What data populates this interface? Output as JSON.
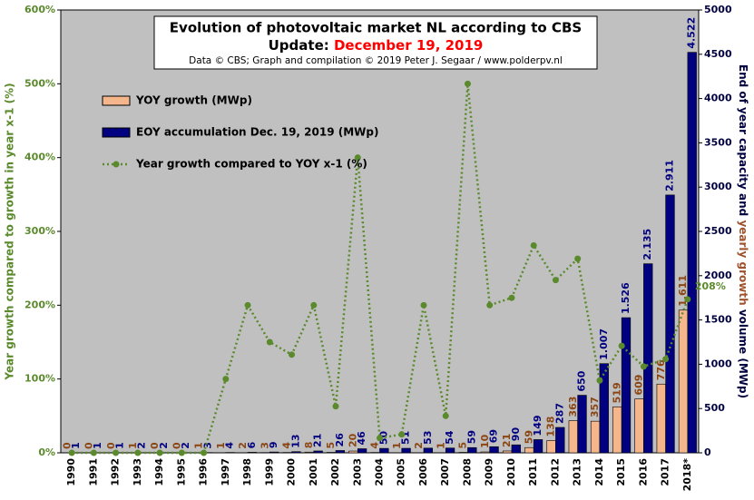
{
  "chart_data": {
    "type": "bar_line",
    "title": "Evolution  of photovoltaic  market NL according to CBS",
    "subtitle_prefix": "Update: ",
    "subtitle_date": "December 19, 2019",
    "credit": "Data © CBS; Graph and compilation © 2019 Peter J. Segaar / www.polderpv.nl",
    "ylabel": "Year growth compared to growth in year x-1 (%)",
    "y2label_parts": [
      "End of year capacity and ",
      "yearly growth",
      " volume (MWp)"
    ],
    "categories": [
      "1990",
      "1991",
      "1992",
      "1993",
      "1994",
      "1995",
      "1996",
      "1997",
      "1998",
      "1999",
      "2000",
      "2001",
      "2002",
      "2003",
      "2004",
      "2005",
      "2006",
      "2007",
      "2008",
      "2009",
      "2010",
      "2011",
      "2012",
      "2013",
      "2014",
      "2015",
      "2016",
      "2017",
      "2018*"
    ],
    "series": [
      {
        "name": "YOY growth (MWp)",
        "color": "#f6b68c",
        "label_color": "#8b4513",
        "axis": "y2",
        "kind": "bar",
        "values": [
          0,
          0,
          0,
          1,
          0,
          0,
          1,
          1,
          2,
          3,
          4,
          8,
          5,
          20,
          4,
          1,
          2,
          1,
          5,
          10,
          21,
          59,
          138,
          363,
          357,
          519,
          609,
          776,
          1611
        ],
        "value_labels": [
          "0",
          "0",
          "0",
          "1",
          "0",
          "0",
          "1",
          "1",
          "2",
          "3",
          "4",
          "8",
          "5",
          "20",
          "4",
          "1",
          "2",
          "1",
          "5",
          "10",
          "21",
          "59",
          "138",
          "363",
          "357",
          "519",
          "609",
          "776",
          "1.611"
        ]
      },
      {
        "name": "EOY accumulation Dec. 19, 2019 (MWp)",
        "color": "#000080",
        "label_color": "#000080",
        "axis": "y2",
        "kind": "bar",
        "values": [
          1,
          1,
          1,
          2,
          2,
          2,
          3,
          4,
          6,
          9,
          13,
          21,
          26,
          46,
          50,
          51,
          53,
          54,
          59,
          69,
          90,
          149,
          287,
          650,
          1007,
          1526,
          2135,
          2911,
          4522
        ],
        "value_labels": [
          "1",
          "1",
          "1",
          "2",
          "2",
          "2",
          "3",
          "4",
          "6",
          "9",
          "13",
          "21",
          "26",
          "46",
          "50",
          "51",
          "53",
          "54",
          "59",
          "69",
          "90",
          "149",
          "287",
          "650",
          "1.007",
          "1.526",
          "2.135",
          "2.911",
          "4.522"
        ]
      },
      {
        "name": "Year growth compared to YOY x-1 (%)",
        "color": "#5b8a2d",
        "axis": "y",
        "kind": "line",
        "values": [
          0,
          0,
          0,
          0,
          0,
          0,
          0,
          100,
          200,
          150,
          133,
          200,
          63,
          400,
          20,
          25,
          200,
          50,
          500,
          200,
          210,
          281,
          234,
          263,
          98,
          145,
          117,
          127,
          208
        ],
        "value_labels": [
          null,
          null,
          null,
          null,
          null,
          null,
          null,
          null,
          null,
          null,
          null,
          null,
          null,
          null,
          null,
          null,
          null,
          null,
          null,
          null,
          null,
          null,
          null,
          null,
          null,
          null,
          null,
          null,
          "208%"
        ]
      }
    ],
    "ylim": [
      0,
      600
    ],
    "yticks": [
      {
        "value": 0,
        "label": "0%"
      },
      {
        "value": 100,
        "label": "100%"
      },
      {
        "value": 200,
        "label": "200%"
      },
      {
        "value": 300,
        "label": "300%"
      },
      {
        "value": 400,
        "label": "400%"
      },
      {
        "value": 500,
        "label": "500%"
      },
      {
        "value": 600,
        "label": "600%"
      }
    ],
    "y2lim": [
      0,
      5000
    ],
    "y2ticks": [
      0,
      500,
      1000,
      1500,
      2000,
      2500,
      3000,
      3500,
      4000,
      4500,
      5000
    ],
    "grid": false
  }
}
